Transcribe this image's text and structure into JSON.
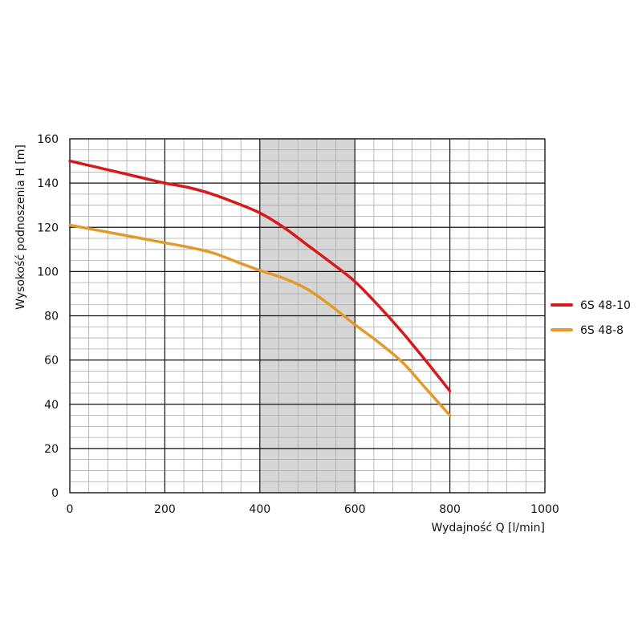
{
  "chart_data": {
    "type": "line",
    "xlabel": "Wydajność Q [l/min]",
    "ylabel": "Wysokość podnoszenia H [m]",
    "xlim": [
      0,
      1000
    ],
    "ylim": [
      0,
      160
    ],
    "x_ticks": [
      0,
      200,
      400,
      600,
      800,
      1000
    ],
    "y_ticks": [
      0,
      20,
      40,
      60,
      80,
      100,
      120,
      140,
      160
    ],
    "x_minor_step": 40,
    "y_minor_step": 5,
    "grid": true,
    "highlight_band": {
      "x_from": 400,
      "x_to": 600,
      "color": "#d6d6d6"
    },
    "legend_position": "right",
    "series": [
      {
        "name": "6S 48-10",
        "color": "#d7191c",
        "x": [
          0,
          50,
          100,
          150,
          200,
          250,
          300,
          350,
          400,
          450,
          500,
          550,
          600,
          650,
          700,
          750,
          800
        ],
        "y": [
          150,
          147.5,
          145,
          142.5,
          140,
          138,
          135,
          131,
          126.5,
          120,
          112,
          104,
          95.5,
          84.5,
          72.5,
          59.5,
          46
        ]
      },
      {
        "name": "6S 48-8",
        "color": "#e39a2c",
        "x": [
          0,
          50,
          100,
          150,
          200,
          250,
          300,
          350,
          400,
          450,
          500,
          550,
          600,
          650,
          700,
          750,
          800
        ],
        "y": [
          121,
          119,
          117,
          115,
          113,
          111,
          108.5,
          104.5,
          100.5,
          97,
          92,
          84.5,
          76,
          68,
          59,
          47,
          35
        ]
      }
    ]
  }
}
